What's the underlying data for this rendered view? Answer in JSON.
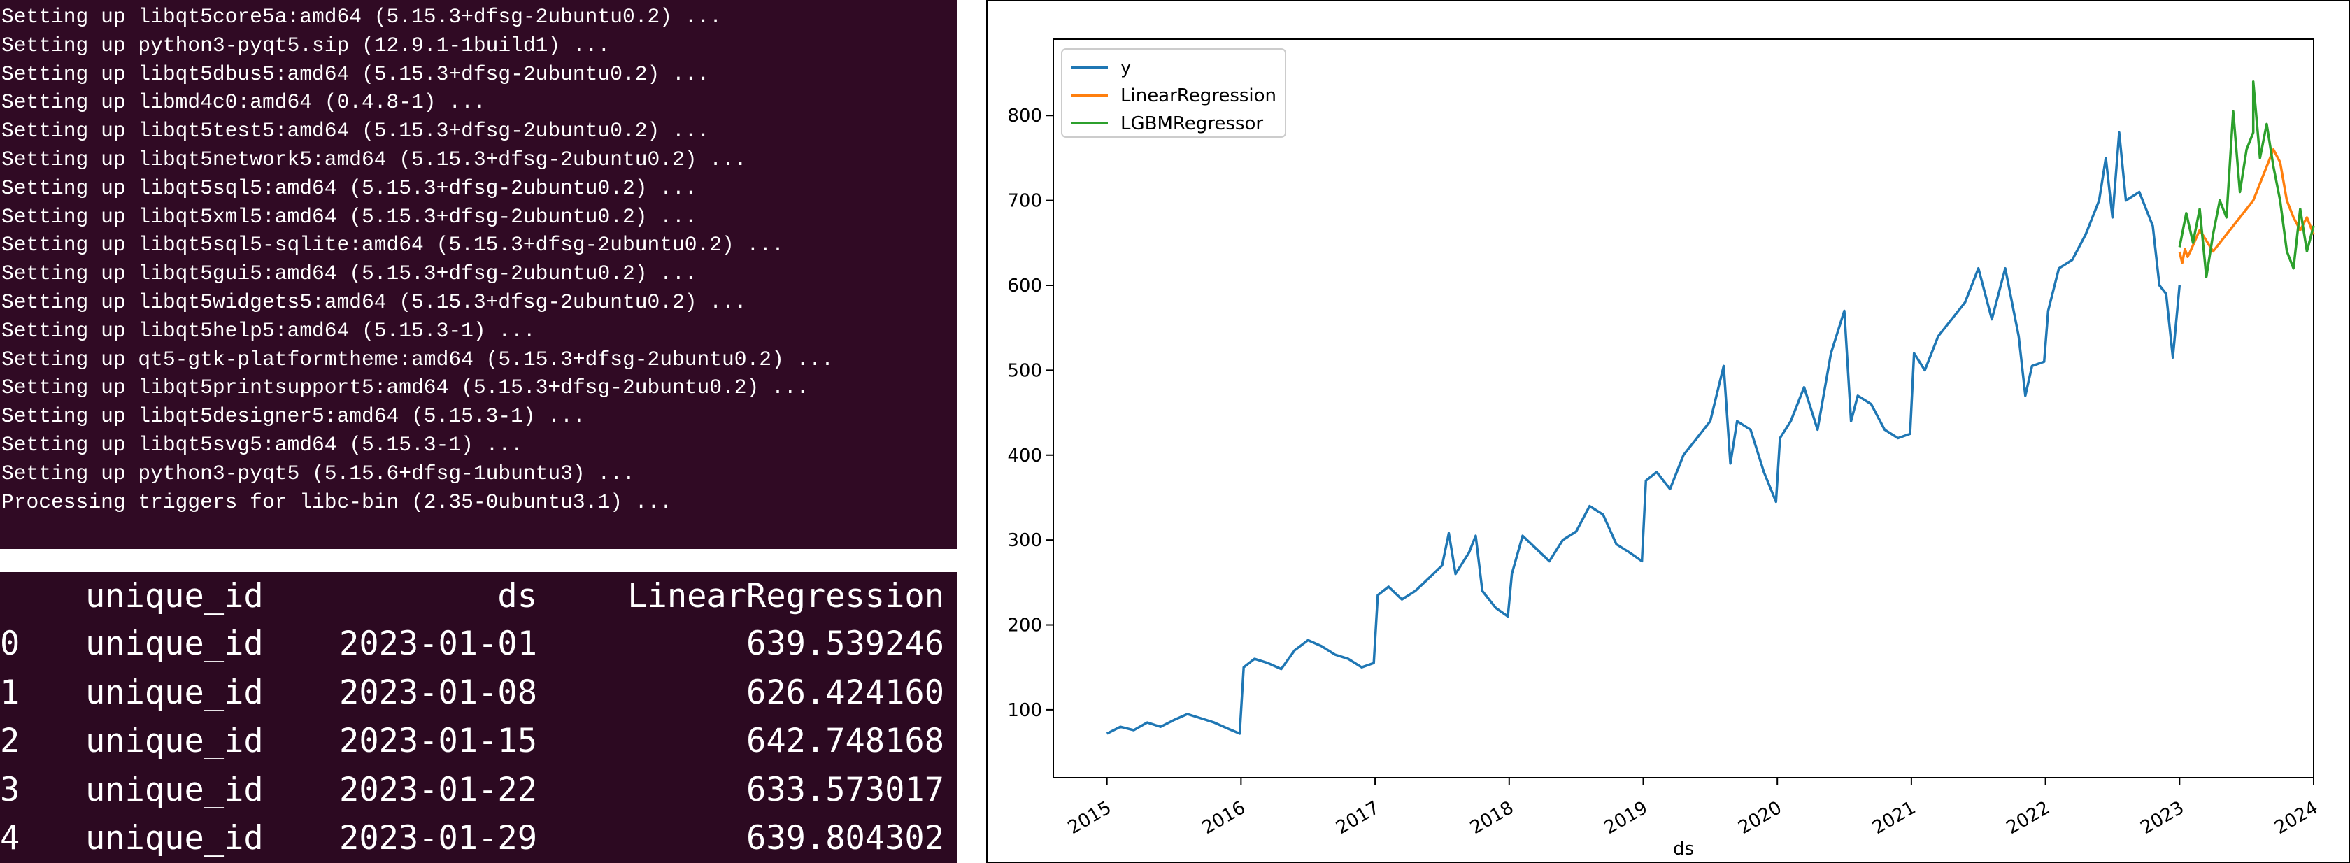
{
  "terminal": {
    "lines": [
      "Setting up libqt5core5a:amd64 (5.15.3+dfsg-2ubuntu0.2) ...",
      "Setting up python3-pyqt5.sip (12.9.1-1build1) ...",
      "Setting up libqt5dbus5:amd64 (5.15.3+dfsg-2ubuntu0.2) ...",
      "Setting up libmd4c0:amd64 (0.4.8-1) ...",
      "Setting up libqt5test5:amd64 (5.15.3+dfsg-2ubuntu0.2) ...",
      "Setting up libqt5network5:amd64 (5.15.3+dfsg-2ubuntu0.2) ...",
      "Setting up libqt5sql5:amd64 (5.15.3+dfsg-2ubuntu0.2) ...",
      "Setting up libqt5xml5:amd64 (5.15.3+dfsg-2ubuntu0.2) ...",
      "Setting up libqt5sql5-sqlite:amd64 (5.15.3+dfsg-2ubuntu0.2) ...",
      "Setting up libqt5gui5:amd64 (5.15.3+dfsg-2ubuntu0.2) ...",
      "Setting up libqt5widgets5:amd64 (5.15.3+dfsg-2ubuntu0.2) ...",
      "Setting up libqt5help5:amd64 (5.15.3-1) ...",
      "Setting up qt5-gtk-platformtheme:amd64 (5.15.3+dfsg-2ubuntu0.2) ...",
      "Setting up libqt5printsupport5:amd64 (5.15.3+dfsg-2ubuntu0.2) ...",
      "Setting up libqt5designer5:amd64 (5.15.3-1) ...",
      "Setting up libqt5svg5:amd64 (5.15.3-1) ...",
      "Setting up python3-pyqt5 (5.15.6+dfsg-1ubuntu3) ...",
      "Processing triggers for libc-bin (2.35-0ubuntu3.1) ..."
    ],
    "background": "#300a24"
  },
  "dataframe": {
    "columns": [
      "unique_id",
      "ds",
      "LinearRegression"
    ],
    "rows": [
      {
        "index": "0",
        "unique_id": "unique_id",
        "ds": "2023-01-01",
        "LinearRegression": "639.539246"
      },
      {
        "index": "1",
        "unique_id": "unique_id",
        "ds": "2023-01-08",
        "LinearRegression": "626.424160"
      },
      {
        "index": "2",
        "unique_id": "unique_id",
        "ds": "2023-01-15",
        "LinearRegression": "642.748168"
      },
      {
        "index": "3",
        "unique_id": "unique_id",
        "ds": "2023-01-22",
        "LinearRegression": "633.573017"
      },
      {
        "index": "4",
        "unique_id": "unique_id",
        "ds": "2023-01-29",
        "LinearRegression": "639.804302"
      }
    ]
  },
  "chart_data": {
    "type": "line",
    "title": "",
    "xlabel": "ds",
    "ylabel": "",
    "xlim": [
      2014.6,
      2024.0
    ],
    "ylim": [
      20,
      890
    ],
    "x_ticks": [
      "2015",
      "2016",
      "2017",
      "2018",
      "2019",
      "2020",
      "2021",
      "2022",
      "2023",
      "2024"
    ],
    "y_ticks": [
      100,
      200,
      300,
      400,
      500,
      600,
      700,
      800
    ],
    "legend_position": "top-left",
    "grid": false,
    "series": [
      {
        "name": "y",
        "color": "#1f77b4",
        "points": [
          [
            2015.0,
            72
          ],
          [
            2015.1,
            80
          ],
          [
            2015.2,
            76
          ],
          [
            2015.3,
            85
          ],
          [
            2015.4,
            80
          ],
          [
            2015.5,
            88
          ],
          [
            2015.6,
            95
          ],
          [
            2015.7,
            90
          ],
          [
            2015.8,
            85
          ],
          [
            2015.9,
            78
          ],
          [
            2015.99,
            72
          ],
          [
            2016.02,
            150
          ],
          [
            2016.1,
            160
          ],
          [
            2016.2,
            155
          ],
          [
            2016.3,
            148
          ],
          [
            2016.4,
            170
          ],
          [
            2016.5,
            182
          ],
          [
            2016.6,
            175
          ],
          [
            2016.7,
            165
          ],
          [
            2016.8,
            160
          ],
          [
            2016.9,
            150
          ],
          [
            2016.99,
            155
          ],
          [
            2017.02,
            235
          ],
          [
            2017.1,
            245
          ],
          [
            2017.2,
            230
          ],
          [
            2017.3,
            240
          ],
          [
            2017.4,
            255
          ],
          [
            2017.5,
            270
          ],
          [
            2017.55,
            308
          ],
          [
            2017.6,
            260
          ],
          [
            2017.7,
            285
          ],
          [
            2017.75,
            305
          ],
          [
            2017.8,
            240
          ],
          [
            2017.9,
            220
          ],
          [
            2017.99,
            210
          ],
          [
            2018.02,
            260
          ],
          [
            2018.1,
            305
          ],
          [
            2018.2,
            290
          ],
          [
            2018.3,
            275
          ],
          [
            2018.4,
            300
          ],
          [
            2018.5,
            310
          ],
          [
            2018.6,
            340
          ],
          [
            2018.7,
            330
          ],
          [
            2018.8,
            295
          ],
          [
            2018.9,
            285
          ],
          [
            2018.99,
            275
          ],
          [
            2019.02,
            370
          ],
          [
            2019.1,
            380
          ],
          [
            2019.2,
            360
          ],
          [
            2019.3,
            400
          ],
          [
            2019.4,
            420
          ],
          [
            2019.5,
            440
          ],
          [
            2019.6,
            505
          ],
          [
            2019.65,
            390
          ],
          [
            2019.7,
            440
          ],
          [
            2019.8,
            430
          ],
          [
            2019.9,
            380
          ],
          [
            2019.99,
            345
          ],
          [
            2020.02,
            420
          ],
          [
            2020.1,
            440
          ],
          [
            2020.2,
            480
          ],
          [
            2020.3,
            430
          ],
          [
            2020.4,
            520
          ],
          [
            2020.5,
            570
          ],
          [
            2020.55,
            440
          ],
          [
            2020.6,
            470
          ],
          [
            2020.7,
            460
          ],
          [
            2020.8,
            430
          ],
          [
            2020.9,
            420
          ],
          [
            2020.99,
            425
          ],
          [
            2021.02,
            520
          ],
          [
            2021.1,
            500
          ],
          [
            2021.2,
            540
          ],
          [
            2021.3,
            560
          ],
          [
            2021.4,
            580
          ],
          [
            2021.5,
            620
          ],
          [
            2021.55,
            590
          ],
          [
            2021.6,
            560
          ],
          [
            2021.7,
            620
          ],
          [
            2021.8,
            540
          ],
          [
            2021.85,
            470
          ],
          [
            2021.9,
            505
          ],
          [
            2021.99,
            510
          ],
          [
            2022.02,
            570
          ],
          [
            2022.1,
            620
          ],
          [
            2022.2,
            630
          ],
          [
            2022.3,
            660
          ],
          [
            2022.4,
            700
          ],
          [
            2022.45,
            750
          ],
          [
            2022.5,
            680
          ],
          [
            2022.55,
            780
          ],
          [
            2022.6,
            700
          ],
          [
            2022.7,
            710
          ],
          [
            2022.8,
            670
          ],
          [
            2022.85,
            600
          ],
          [
            2022.9,
            590
          ],
          [
            2022.95,
            515
          ],
          [
            2023.0,
            600
          ]
        ]
      },
      {
        "name": "LinearRegression",
        "color": "#ff7f0e",
        "points": [
          [
            2023.0,
            639.5
          ],
          [
            2023.02,
            626.4
          ],
          [
            2023.04,
            642.7
          ],
          [
            2023.06,
            633.6
          ],
          [
            2023.08,
            639.8
          ],
          [
            2023.15,
            665
          ],
          [
            2023.25,
            640
          ],
          [
            2023.35,
            660
          ],
          [
            2023.45,
            680
          ],
          [
            2023.55,
            700
          ],
          [
            2023.6,
            720
          ],
          [
            2023.65,
            740
          ],
          [
            2023.7,
            760
          ],
          [
            2023.75,
            745
          ],
          [
            2023.8,
            700
          ],
          [
            2023.85,
            680
          ],
          [
            2023.9,
            665
          ],
          [
            2023.95,
            680
          ],
          [
            2024.0,
            660
          ]
        ]
      },
      {
        "name": "LGBMRegressor",
        "color": "#2ca02c",
        "points": [
          [
            2023.0,
            645
          ],
          [
            2023.05,
            685
          ],
          [
            2023.1,
            650
          ],
          [
            2023.15,
            690
          ],
          [
            2023.2,
            610
          ],
          [
            2023.25,
            660
          ],
          [
            2023.3,
            700
          ],
          [
            2023.35,
            680
          ],
          [
            2023.4,
            805
          ],
          [
            2023.45,
            710
          ],
          [
            2023.5,
            760
          ],
          [
            2023.55,
            780
          ],
          [
            2023.55,
            840
          ],
          [
            2023.6,
            750
          ],
          [
            2023.65,
            790
          ],
          [
            2023.7,
            740
          ],
          [
            2023.75,
            700
          ],
          [
            2023.8,
            640
          ],
          [
            2023.85,
            620
          ],
          [
            2023.9,
            690
          ],
          [
            2023.95,
            640
          ],
          [
            2024.0,
            670
          ]
        ]
      }
    ]
  }
}
